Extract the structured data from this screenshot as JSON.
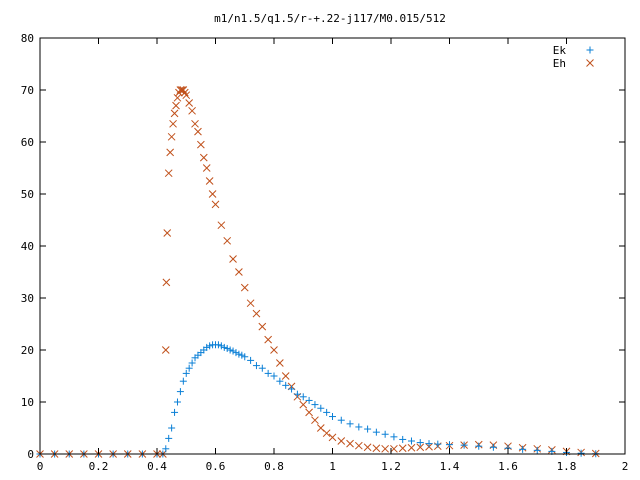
{
  "chart_data": {
    "type": "scatter",
    "title": "m1/n1.5/q1.5/r-+.22-j117/M0.015/512",
    "xlabel": "",
    "ylabel": "",
    "xlim": [
      0,
      2
    ],
    "ylim": [
      0,
      80
    ],
    "x_ticks": [
      "0",
      "0.2",
      "0.4",
      "0.6",
      "0.8",
      "1",
      "1.2",
      "1.4",
      "1.6",
      "1.8",
      "2"
    ],
    "y_ticks": [
      "0",
      "10",
      "20",
      "30",
      "40",
      "50",
      "60",
      "70",
      "80"
    ],
    "grid": false,
    "legend_position": "top-right",
    "series": [
      {
        "name": "Ek",
        "marker": "plus",
        "color": "#0a7fd6",
        "x": [
          0.0,
          0.05,
          0.1,
          0.15,
          0.2,
          0.25,
          0.3,
          0.35,
          0.4,
          0.42,
          0.43,
          0.44,
          0.45,
          0.46,
          0.47,
          0.48,
          0.49,
          0.5,
          0.51,
          0.52,
          0.53,
          0.54,
          0.55,
          0.56,
          0.57,
          0.58,
          0.59,
          0.6,
          0.61,
          0.62,
          0.63,
          0.64,
          0.65,
          0.66,
          0.67,
          0.68,
          0.69,
          0.7,
          0.72,
          0.74,
          0.76,
          0.78,
          0.8,
          0.82,
          0.84,
          0.86,
          0.88,
          0.9,
          0.92,
          0.94,
          0.96,
          0.98,
          1.0,
          1.03,
          1.06,
          1.09,
          1.12,
          1.15,
          1.18,
          1.21,
          1.24,
          1.27,
          1.3,
          1.33,
          1.36,
          1.4,
          1.45,
          1.5,
          1.55,
          1.6,
          1.65,
          1.7,
          1.75,
          1.8,
          1.85,
          1.9
        ],
        "y": [
          0,
          0,
          0,
          0,
          0,
          0,
          0,
          0,
          0,
          0,
          1,
          3,
          5,
          8,
          10,
          12,
          14,
          15.5,
          16.5,
          17.5,
          18.5,
          19,
          19.5,
          20,
          20.5,
          20.8,
          21,
          21,
          21,
          20.8,
          20.5,
          20.3,
          20,
          19.8,
          19.5,
          19.2,
          19,
          18.7,
          18,
          17,
          16.5,
          15.5,
          15,
          14,
          13.2,
          12.5,
          11.5,
          11,
          10.3,
          9.5,
          8.8,
          8,
          7.2,
          6.5,
          5.8,
          5.2,
          4.8,
          4.2,
          3.8,
          3.3,
          2.8,
          2.5,
          2.2,
          2,
          1.9,
          1.8,
          1.7,
          1.5,
          1.3,
          1.1,
          0.9,
          0.7,
          0.5,
          0.3,
          0.15,
          0.05
        ]
      },
      {
        "name": "Eh",
        "marker": "cross",
        "color": "#c0501a",
        "x": [
          0.0,
          0.05,
          0.1,
          0.15,
          0.2,
          0.25,
          0.3,
          0.35,
          0.4,
          0.42,
          0.43,
          0.432,
          0.435,
          0.44,
          0.445,
          0.45,
          0.455,
          0.46,
          0.465,
          0.47,
          0.475,
          0.48,
          0.485,
          0.49,
          0.495,
          0.5,
          0.51,
          0.52,
          0.53,
          0.54,
          0.55,
          0.56,
          0.57,
          0.58,
          0.59,
          0.6,
          0.62,
          0.64,
          0.66,
          0.68,
          0.7,
          0.72,
          0.74,
          0.76,
          0.78,
          0.8,
          0.82,
          0.84,
          0.86,
          0.88,
          0.9,
          0.92,
          0.94,
          0.96,
          0.98,
          1.0,
          1.03,
          1.06,
          1.09,
          1.12,
          1.15,
          1.18,
          1.21,
          1.24,
          1.27,
          1.3,
          1.33,
          1.36,
          1.4,
          1.45,
          1.5,
          1.55,
          1.6,
          1.65,
          1.7,
          1.75,
          1.8,
          1.85,
          1.9
        ],
        "y": [
          0,
          0,
          0,
          0,
          0,
          0,
          0,
          0,
          0,
          0,
          20,
          33,
          42.5,
          54,
          58,
          61,
          63.5,
          65.5,
          67,
          68.5,
          69.5,
          70,
          70,
          70,
          69.5,
          69,
          67.5,
          66,
          63.5,
          62,
          59.5,
          57,
          55,
          52.5,
          50,
          48,
          44,
          41,
          37.5,
          35,
          32,
          29,
          27,
          24.5,
          22,
          20,
          17.5,
          15,
          13,
          11,
          9.5,
          8,
          6.5,
          5,
          4,
          3.2,
          2.5,
          2,
          1.6,
          1.3,
          1.1,
          1,
          1,
          1.1,
          1.2,
          1.3,
          1.4,
          1.5,
          1.6,
          1.7,
          1.8,
          1.7,
          1.5,
          1.2,
          1,
          0.8,
          0.5,
          0.3,
          0.1
        ]
      }
    ]
  }
}
